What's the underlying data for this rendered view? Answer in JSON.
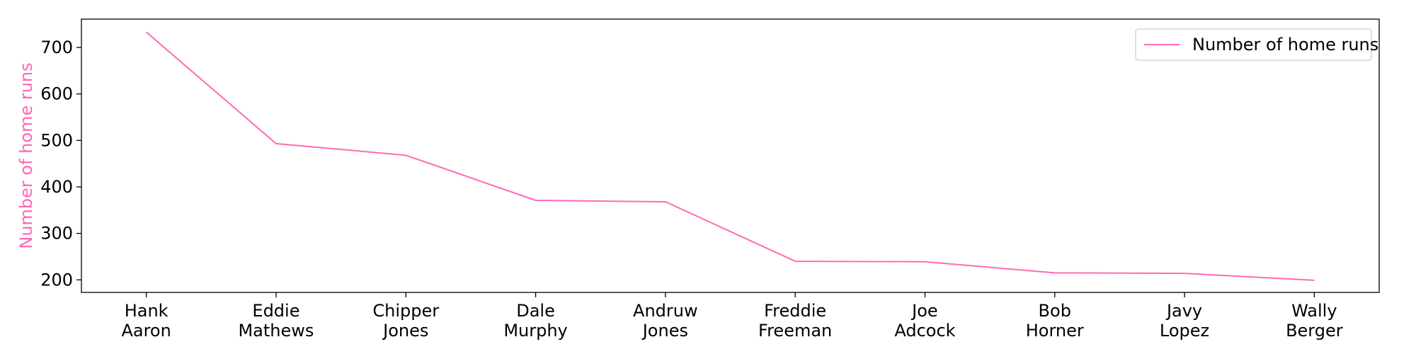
{
  "chart_data": {
    "type": "line",
    "title": "",
    "xlabel": "",
    "ylabel": "Number of home runs",
    "categories": [
      [
        "Hank",
        "Aaron"
      ],
      [
        "Eddie",
        "Mathews"
      ],
      [
        "Chipper",
        "Jones"
      ],
      [
        "Dale",
        "Murphy"
      ],
      [
        "Andruw",
        "Jones"
      ],
      [
        "Freddie",
        "Freeman"
      ],
      [
        "Joe",
        "Adcock"
      ],
      [
        "Bob",
        "Horner"
      ],
      [
        "Javy",
        "Lopez"
      ],
      [
        "Wally",
        "Berger"
      ]
    ],
    "series": [
      {
        "name": "Number of home runs",
        "values": [
          733,
          493,
          468,
          371,
          368,
          240,
          239,
          215,
          214,
          199
        ],
        "color": "#ff69b4"
      }
    ],
    "ylim": [
      173,
      761
    ],
    "yticks": [
      200,
      300,
      400,
      500,
      600,
      700
    ],
    "grid": false,
    "legend_position": "top-right"
  }
}
